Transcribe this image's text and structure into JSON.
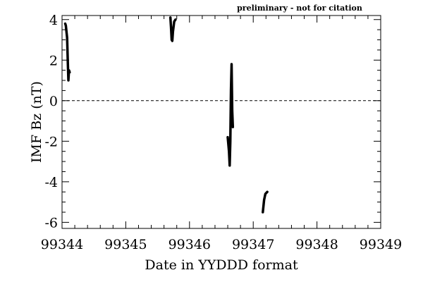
{
  "note": "preliminary - not for citation",
  "chart_data": {
    "type": "line",
    "xlabel": "Date in YYDDD format",
    "ylabel": "IMF Bz (nT)",
    "xlim": [
      99344,
      99349
    ],
    "ylim": [
      -6.3,
      4.2
    ],
    "x_ticks": [
      99344,
      99345,
      99346,
      99347,
      99348,
      99349
    ],
    "x_tick_labels": [
      "99344",
      "99345",
      "99346",
      "99347",
      "99348",
      "99349"
    ],
    "y_ticks": [
      -6,
      -4,
      -2,
      0,
      2,
      4
    ],
    "y_tick_labels": [
      "-6",
      "-4",
      "-2",
      "0",
      "2",
      "4"
    ],
    "reference_line": {
      "y": 0,
      "style": "dashed"
    },
    "series": [
      {
        "x": [
          99344.05,
          99344.06,
          99344.08,
          99344.09,
          99344.1,
          99344.11,
          99344.12
        ],
        "y": [
          3.8,
          3.7,
          3.1,
          2.0,
          1.0,
          1.5,
          1.4
        ]
      },
      {
        "x": [
          99345.7,
          99345.71,
          99345.72,
          99345.73,
          99345.74,
          99345.76,
          99345.78
        ],
        "y": [
          4.1,
          3.6,
          3.0,
          2.95,
          3.4,
          3.9,
          4.0
        ]
      },
      {
        "x": [
          99346.6,
          99346.62,
          99346.63,
          99346.64,
          99346.65,
          99346.66,
          99346.67,
          99346.68
        ],
        "y": [
          -1.8,
          -2.5,
          -3.2,
          -2.0,
          0.5,
          1.8,
          -0.5,
          -1.3
        ]
      },
      {
        "x": [
          99347.15,
          99347.17,
          99347.19,
          99347.22
        ],
        "y": [
          -5.5,
          -4.9,
          -4.6,
          -4.5
        ]
      }
    ]
  }
}
